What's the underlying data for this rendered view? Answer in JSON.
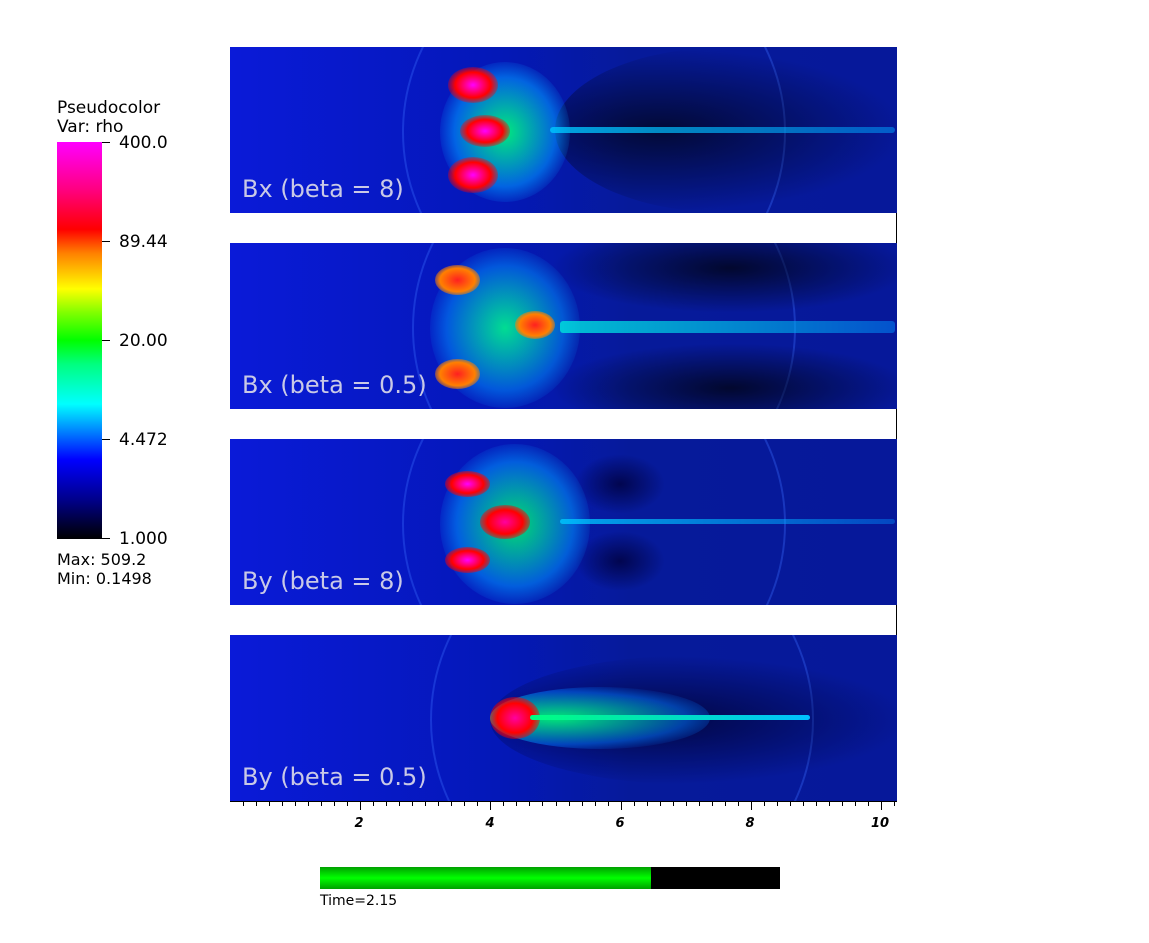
{
  "legend": {
    "title": "Pseudocolor",
    "var": "Var: rho",
    "ticks": [
      "400.0",
      "89.44",
      "20.00",
      "4.472",
      "1.000"
    ],
    "max": "Max:  509.2",
    "min": "Min:  0.1498"
  },
  "panels": [
    {
      "label": "Bx (beta = 8)"
    },
    {
      "label": "Bx (beta = 0.5)"
    },
    {
      "label": "By (beta = 8)"
    },
    {
      "label": "By (beta = 0.5)"
    }
  ],
  "x_axis": {
    "ticks": [
      "2",
      "4",
      "6",
      "8",
      "10"
    ]
  },
  "time": {
    "label": "Time=2.15",
    "progress_fraction": 0.72
  }
}
